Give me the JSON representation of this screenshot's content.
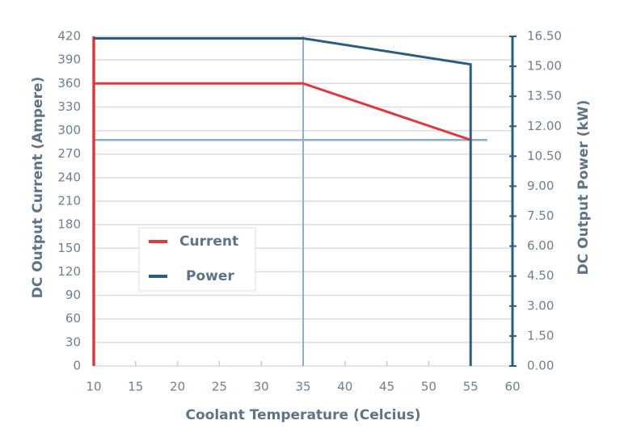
{
  "chart_data": {
    "type": "line",
    "x_label": "Coolant Temperature (Celcius)",
    "y_label": "DC Output Current (Ampere)",
    "y2_label": "DC Output Power (kW)",
    "x": [
      10,
      35,
      55,
      55
    ],
    "series": [
      {
        "name": "Current",
        "color": "#e0393b",
        "values": [
          360,
          360,
          288,
          null
        ]
      },
      {
        "name": "Power",
        "color": "#2b5d80",
        "axis": "y2",
        "values": [
          16.4,
          16.4,
          15.1,
          0
        ]
      }
    ],
    "reference_lines": {
      "color": "#8eaecb",
      "x": 35,
      "y": 288
    },
    "xlim": [
      10,
      60
    ],
    "xticks": [
      10,
      15,
      20,
      25,
      30,
      35,
      40,
      45,
      50,
      55,
      60
    ],
    "ylim": [
      0,
      420
    ],
    "yticks": [
      0,
      30,
      60,
      90,
      120,
      150,
      180,
      210,
      240,
      270,
      300,
      330,
      360,
      390,
      420
    ],
    "y2lim": [
      0,
      16.5
    ],
    "y2ticks": [
      {
        "value": 0,
        "label": "0.00"
      },
      {
        "value": 1.5,
        "label": "1.50"
      },
      {
        "value": 3,
        "label": "3.00"
      },
      {
        "value": 4.5,
        "label": "4.50"
      },
      {
        "value": 6,
        "label": "6.00"
      },
      {
        "value": 7.5,
        "label": "7.50"
      },
      {
        "value": 9,
        "label": "9.00"
      },
      {
        "value": 10.5,
        "label": "10.50"
      },
      {
        "value": 12,
        "label": "12.00"
      },
      {
        "value": 13.5,
        "label": "13.50"
      },
      {
        "value": 15,
        "label": "15.00"
      },
      {
        "value": 16.5,
        "label": "16.50"
      }
    ],
    "grid": true,
    "legend": "center-left"
  }
}
